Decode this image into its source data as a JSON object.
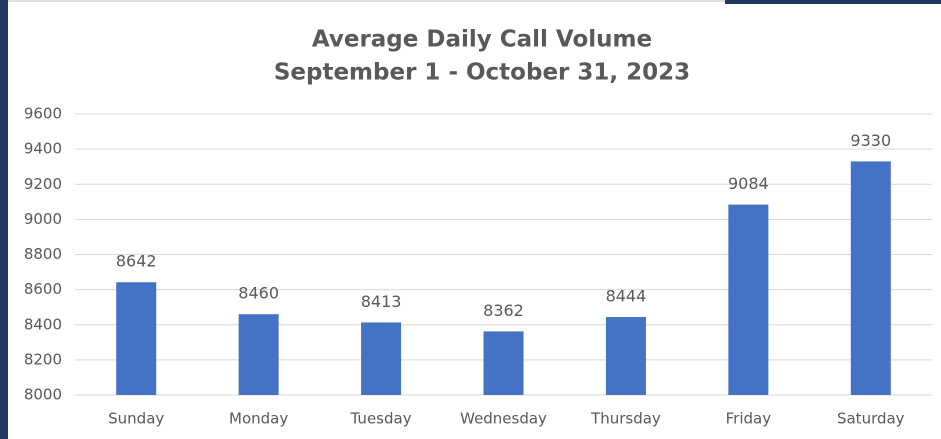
{
  "chart_data": {
    "type": "bar",
    "title": "Average Daily Call Volume",
    "subtitle": "September 1 - October 31, 2023",
    "categories": [
      "Sunday",
      "Monday",
      "Tuesday",
      "Wednesday",
      "Thursday",
      "Friday",
      "Saturday"
    ],
    "values": [
      8642,
      8460,
      8413,
      8362,
      8444,
      9084,
      9330
    ],
    "color": "#4472c4",
    "ylim": [
      8000,
      9600
    ],
    "yticks": [
      8000,
      8200,
      8400,
      8600,
      8800,
      9000,
      9200,
      9400,
      9600
    ],
    "grid": true
  }
}
